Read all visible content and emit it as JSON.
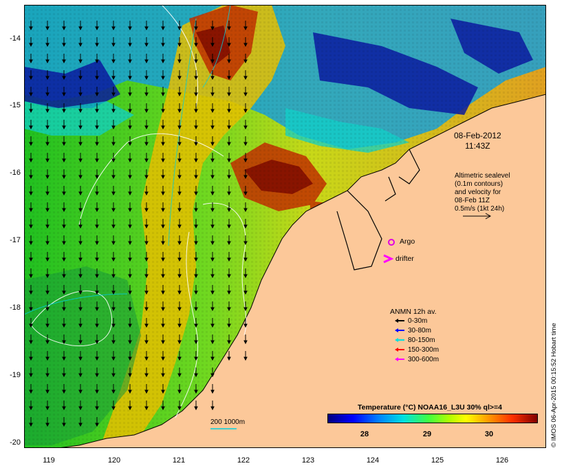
{
  "map": {
    "date": "08-Feb-2012",
    "time": "11:43Z",
    "altimetry_lines": [
      "Altimetric sealevel",
      "(0.1m contours)",
      "and velocity for",
      "08-Feb 11Z",
      "0.5m/s (1kt 24h)"
    ],
    "argo_label": "Argo",
    "drifter_label": "drifter",
    "credit": "© IMOS 06-Apr-2015 00:15:52 Hobart time",
    "scale_label": "200  1000m",
    "x_ticks": [
      "119",
      "120",
      "121",
      "122",
      "123",
      "124",
      "125",
      "126"
    ],
    "y_ticks": [
      "-14",
      "-15",
      "-16",
      "-17",
      "-18",
      "-19",
      "-20"
    ],
    "colors": {
      "land": "#fcc899",
      "argo": "#e000e0",
      "drifter": "#ff00ff"
    }
  },
  "legend": {
    "title": "ANMN 12h av.",
    "items": [
      {
        "label": "0-30m",
        "color": "#000000"
      },
      {
        "label": "30-80m",
        "color": "#0000ff"
      },
      {
        "label": "80-150m",
        "color": "#00e0e0"
      },
      {
        "label": "150-300m",
        "color": "#ff0000"
      },
      {
        "label": "300-600m",
        "color": "#ff00ff"
      }
    ]
  },
  "colorbar": {
    "title": "Temperature (°C) NOAA16_L3U 30% ql>=4",
    "ticks": [
      "28",
      "29",
      "30"
    ]
  }
}
